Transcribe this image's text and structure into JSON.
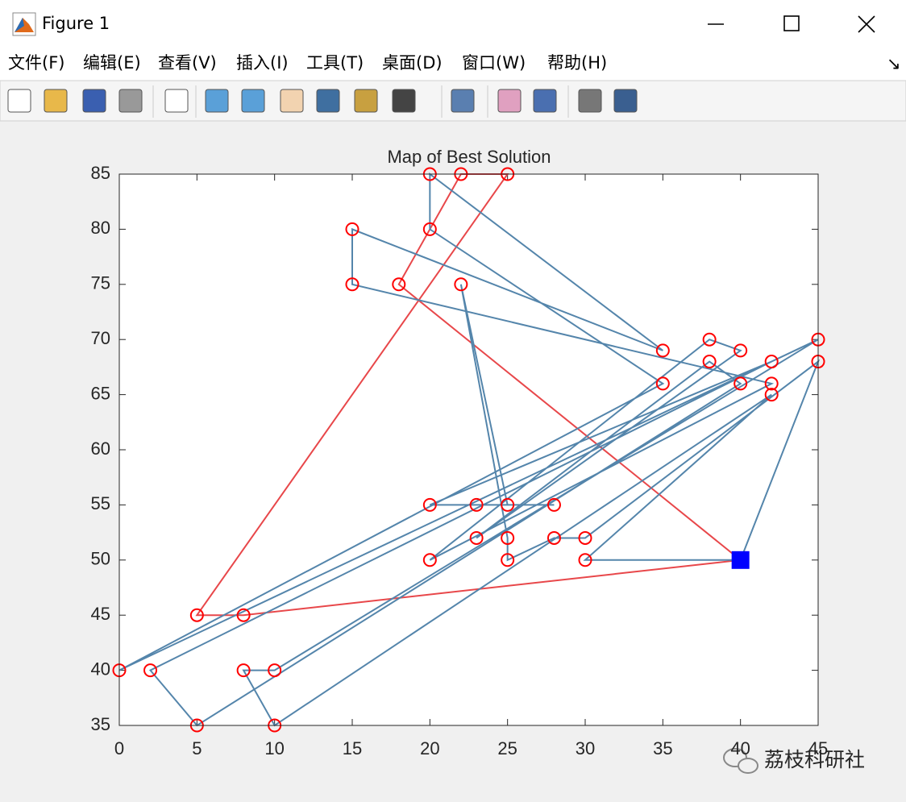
{
  "window": {
    "title": "Figure 1",
    "menu": [
      "文件(F)",
      "编辑(E)",
      "查看(V)",
      "插入(I)",
      "工具(T)",
      "桌面(D)",
      "窗口(W)",
      "帮助(H)"
    ]
  },
  "watermark": "荔枝科研社",
  "chart_data": {
    "type": "line",
    "title": "Map of Best Solution",
    "xlim": [
      0,
      45
    ],
    "ylim": [
      35,
      85
    ],
    "xticks": [
      0,
      5,
      10,
      15,
      20,
      25,
      30,
      35,
      40,
      45
    ],
    "yticks": [
      35,
      40,
      45,
      50,
      55,
      60,
      65,
      70,
      75,
      80,
      85
    ],
    "series": [
      {
        "color": "#e8474a",
        "marker": "o",
        "marker_color": "#ff0000",
        "line": true,
        "x": [
          40,
          8,
          5,
          25,
          22,
          18,
          40
        ],
        "values": [
          50,
          45,
          45,
          85,
          85,
          75,
          50
        ]
      },
      {
        "color": "#5485ab",
        "marker": "o",
        "marker_color": "#ff0000",
        "line": true,
        "x": [
          40,
          30,
          42,
          10,
          8,
          10,
          45,
          0,
          35,
          20,
          20,
          35,
          15,
          15,
          42,
          20,
          38,
          40,
          23,
          38,
          40,
          5,
          2,
          42,
          20,
          23,
          28,
          25,
          22,
          25,
          25,
          28,
          30,
          45,
          40
        ],
        "values": [
          50,
          50,
          65,
          35,
          40,
          40,
          70,
          40,
          66,
          80,
          85,
          69,
          80,
          75,
          66,
          50,
          70,
          69,
          52,
          68,
          66,
          35,
          40,
          68,
          55,
          55,
          55,
          55,
          75,
          52,
          50,
          52,
          52,
          68,
          50
        ]
      },
      {
        "color": "#0000ff",
        "marker": "s",
        "marker_color": "#0000ff",
        "line": false,
        "x": [
          40
        ],
        "values": [
          50
        ]
      }
    ]
  }
}
